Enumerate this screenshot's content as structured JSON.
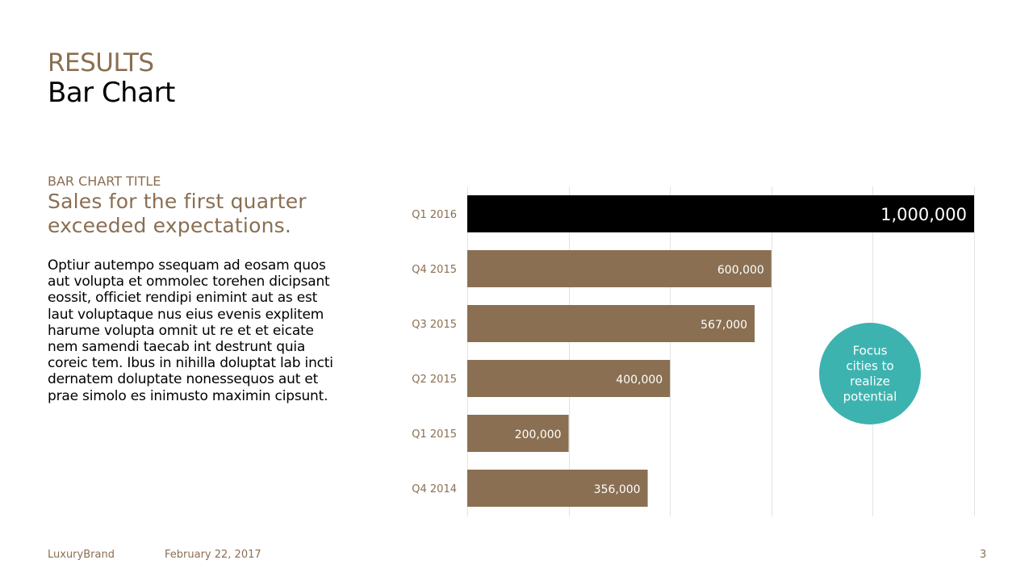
{
  "header": {
    "section": "RESULTS",
    "title": "Bar Chart"
  },
  "left": {
    "chart_label": "BAR CHART TITLE",
    "subtitle": "Sales for the first quarter exceeded expectations.",
    "body": "Optiur autempo ssequam ad eosam quos aut volupta et ommolec torehen dicipsant eossit, officiet rendipi enimint aut as est laut voluptaque nus eius evenis explitem harume volupta omnit ut re et et eicate nem samendi taecab int destrunt quia coreic tem. Ibus in nihilla doluptat lab incti dernatem doluptate nonessequos aut et prae simolo es inimusto maximin cipsunt."
  },
  "callout": {
    "text_lines": [
      "Focus",
      "cities to",
      "realize",
      "potential"
    ],
    "color": "#3db3b0"
  },
  "footer": {
    "brand": "LuxuryBrand",
    "date": "February 22, 2017",
    "page": "3"
  },
  "colors": {
    "accent": "#8a6f52",
    "highlight": "#000000",
    "grid": "#e3e3e3"
  },
  "chart_data": {
    "type": "bar",
    "orientation": "horizontal",
    "title": "",
    "xlabel": "",
    "ylabel": "",
    "categories": [
      "Q1 2016",
      "Q4 2015",
      "Q3 2015",
      "Q2 2015",
      "Q1 2015",
      "Q4 2014"
    ],
    "values": [
      1000000,
      600000,
      567000,
      400000,
      200000,
      356000
    ],
    "value_labels": [
      "1,000,000",
      "600,000",
      "567,000",
      "400,000",
      "200,000",
      "356,000"
    ],
    "highlight_index": 0,
    "xlim": [
      0,
      1000000
    ],
    "grid": true,
    "legend": "none"
  }
}
